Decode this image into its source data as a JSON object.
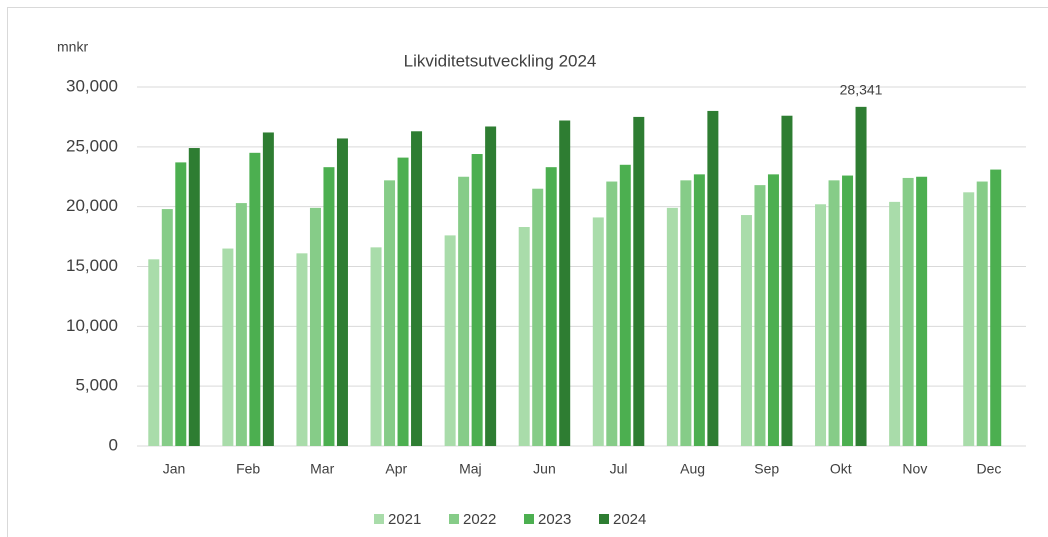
{
  "chart_data": {
    "type": "bar",
    "title": "Likviditetsutveckling 2024",
    "ylabel": "mnkr",
    "categories": [
      "Jan",
      "Feb",
      "Mar",
      "Apr",
      "Maj",
      "Jun",
      "Jul",
      "Aug",
      "Sep",
      "Okt",
      "Nov",
      "Dec"
    ],
    "series": [
      {
        "name": "2021",
        "color": "#a9dcaa",
        "values": [
          15600,
          16500,
          16100,
          16600,
          17600,
          18300,
          19100,
          19900,
          19300,
          20200,
          20400,
          21200
        ]
      },
      {
        "name": "2022",
        "color": "#86cc88",
        "values": [
          19800,
          20300,
          19900,
          22200,
          22500,
          21500,
          22100,
          22200,
          21800,
          22200,
          22400,
          22100
        ]
      },
      {
        "name": "2023",
        "color": "#4caf50",
        "values": [
          23700,
          24500,
          23300,
          24100,
          24400,
          23300,
          23500,
          22700,
          22700,
          22600,
          22500,
          23100
        ]
      },
      {
        "name": "2024",
        "color": "#2e7d32",
        "values": [
          24900,
          26200,
          25700,
          26300,
          26700,
          27200,
          27500,
          28000,
          27600,
          28341,
          null,
          null
        ],
        "value_labels": [
          null,
          null,
          null,
          null,
          null,
          null,
          null,
          null,
          null,
          "28,341",
          null,
          null
        ]
      }
    ],
    "ylim": [
      0,
      30000
    ],
    "yticks": [
      0,
      {
        "value": 5000,
        "label": "5,000"
      },
      {
        "value": 10000,
        "label": "10,000"
      },
      {
        "value": 15000,
        "label": "15,000"
      },
      {
        "value": 20000,
        "label": "20,000"
      },
      {
        "value": 25000,
        "label": "25,000"
      },
      {
        "value": 30000,
        "label": "30,000"
      }
    ],
    "grid": true,
    "legend": "bottom"
  }
}
